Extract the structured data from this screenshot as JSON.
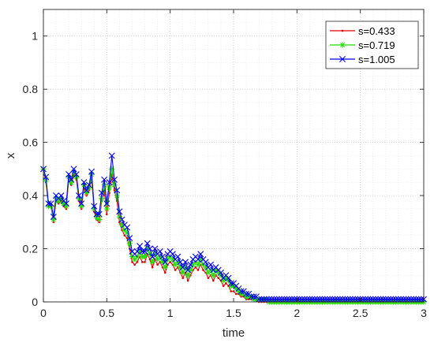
{
  "chart_data": {
    "type": "line",
    "title": "",
    "xlabel": "time",
    "ylabel": "x",
    "xlim": [
      0,
      3
    ],
    "ylim": [
      0,
      1.1
    ],
    "xticks": [
      "0",
      "0.5",
      "1",
      "1.5",
      "2",
      "2.5",
      "3"
    ],
    "yticks": [
      "0",
      "0.2",
      "0.4",
      "0.6",
      "0.8",
      "1"
    ],
    "grid": "dotted, major and minor",
    "legend_position": "top-right",
    "x": [
      0,
      0.02,
      0.04,
      0.06,
      0.08,
      0.1,
      0.12,
      0.14,
      0.16,
      0.18,
      0.2,
      0.22,
      0.24,
      0.26,
      0.28,
      0.3,
      0.32,
      0.34,
      0.36,
      0.38,
      0.4,
      0.42,
      0.44,
      0.46,
      0.48,
      0.5,
      0.52,
      0.54,
      0.56,
      0.58,
      0.6,
      0.62,
      0.64,
      0.66,
      0.68,
      0.7,
      0.72,
      0.74,
      0.76,
      0.78,
      0.8,
      0.82,
      0.84,
      0.86,
      0.88,
      0.9,
      0.92,
      0.94,
      0.96,
      0.98,
      1.0,
      1.02,
      1.04,
      1.06,
      1.08,
      1.1,
      1.12,
      1.14,
      1.16,
      1.18,
      1.2,
      1.22,
      1.24,
      1.26,
      1.28,
      1.3,
      1.32,
      1.34,
      1.36,
      1.38,
      1.4,
      1.42,
      1.44,
      1.46,
      1.48,
      1.5,
      1.52,
      1.54,
      1.56,
      1.58,
      1.6,
      1.62,
      1.64,
      1.66,
      1.68,
      1.7,
      1.72,
      1.74,
      1.76,
      1.78,
      1.8,
      1.82,
      1.84,
      1.86,
      1.88,
      1.9,
      1.92,
      1.94,
      1.96,
      1.98,
      2.0,
      2.02,
      2.04,
      2.06,
      2.08,
      2.1,
      2.12,
      2.14,
      2.16,
      2.18,
      2.2,
      2.22,
      2.24,
      2.26,
      2.28,
      2.3,
      2.32,
      2.34,
      2.36,
      2.38,
      2.4,
      2.42,
      2.44,
      2.46,
      2.48,
      2.5,
      2.52,
      2.54,
      2.56,
      2.58,
      2.6,
      2.62,
      2.64,
      2.66,
      2.68,
      2.7,
      2.72,
      2.74,
      2.76,
      2.78,
      2.8,
      2.82,
      2.84,
      2.86,
      2.88,
      2.9,
      2.92,
      2.94,
      2.96,
      2.98,
      3.0
    ],
    "series": [
      {
        "name": "s=0.433",
        "color": "#e00000",
        "marker": "dot",
        "values": [
          0.5,
          0.45,
          0.36,
          0.36,
          0.3,
          0.38,
          0.37,
          0.38,
          0.36,
          0.35,
          0.46,
          0.44,
          0.48,
          0.46,
          0.38,
          0.35,
          0.43,
          0.4,
          0.42,
          0.47,
          0.34,
          0.31,
          0.3,
          0.38,
          0.42,
          0.33,
          0.41,
          0.48,
          0.42,
          0.38,
          0.3,
          0.27,
          0.25,
          0.24,
          0.2,
          0.15,
          0.14,
          0.15,
          0.17,
          0.15,
          0.15,
          0.18,
          0.16,
          0.13,
          0.16,
          0.14,
          0.15,
          0.13,
          0.11,
          0.14,
          0.15,
          0.14,
          0.12,
          0.13,
          0.11,
          0.09,
          0.11,
          0.08,
          0.1,
          0.12,
          0.13,
          0.12,
          0.14,
          0.12,
          0.11,
          0.09,
          0.1,
          0.08,
          0.1,
          0.09,
          0.08,
          0.06,
          0.07,
          0.06,
          0.04,
          0.04,
          0.03,
          0.03,
          0.02,
          0.02,
          0.01,
          0.01,
          0.01,
          0.01,
          0.01,
          0.0,
          0.0,
          0.0,
          0.0,
          0.0,
          0.0,
          0.0,
          0.0,
          0.0,
          0.0,
          0.0,
          0.0,
          0.0,
          0.0,
          0.0,
          0.0,
          0.0,
          0.0,
          0.0,
          0.0,
          0.0,
          0.0,
          0.0,
          0.0,
          0.0,
          0.0,
          0.0,
          0.0,
          0.0,
          0.0,
          0.0,
          0.0,
          0.0,
          0.0,
          0.0,
          0.0,
          0.0,
          0.0,
          0.0,
          0.0,
          0.0,
          0.0,
          0.0,
          0.0,
          0.0,
          0.0,
          0.0,
          0.0,
          0.0,
          0.0,
          0.0,
          0.0,
          0.0,
          0.0,
          0.0,
          0.0,
          0.0,
          0.0,
          0.0,
          0.0,
          0.0,
          0.0,
          0.0,
          0.0,
          0.0,
          0.0
        ]
      },
      {
        "name": "s=0.719",
        "color": "#22dd00",
        "marker": "star",
        "values": [
          0.5,
          0.46,
          0.36,
          0.36,
          0.31,
          0.39,
          0.38,
          0.39,
          0.37,
          0.36,
          0.47,
          0.45,
          0.49,
          0.47,
          0.39,
          0.36,
          0.44,
          0.41,
          0.43,
          0.48,
          0.35,
          0.32,
          0.31,
          0.39,
          0.44,
          0.35,
          0.43,
          0.5,
          0.44,
          0.4,
          0.32,
          0.29,
          0.27,
          0.26,
          0.22,
          0.17,
          0.16,
          0.17,
          0.19,
          0.17,
          0.17,
          0.2,
          0.18,
          0.15,
          0.18,
          0.16,
          0.17,
          0.15,
          0.13,
          0.16,
          0.17,
          0.16,
          0.14,
          0.15,
          0.13,
          0.11,
          0.13,
          0.1,
          0.12,
          0.14,
          0.15,
          0.14,
          0.16,
          0.14,
          0.13,
          0.11,
          0.12,
          0.1,
          0.12,
          0.11,
          0.1,
          0.08,
          0.09,
          0.08,
          0.06,
          0.06,
          0.05,
          0.04,
          0.03,
          0.03,
          0.02,
          0.02,
          0.02,
          0.01,
          0.01,
          0.01,
          0.01,
          0.01,
          0.01,
          0.0,
          0.0,
          0.0,
          0.0,
          0.0,
          0.0,
          0.0,
          0.0,
          0.0,
          0.0,
          0.0,
          0.0,
          0.0,
          0.0,
          0.0,
          0.0,
          0.0,
          0.0,
          0.0,
          0.0,
          0.0,
          0.0,
          0.0,
          0.0,
          0.0,
          0.0,
          0.0,
          0.0,
          0.0,
          0.0,
          0.0,
          0.0,
          0.0,
          0.0,
          0.0,
          0.0,
          0.0,
          0.0,
          0.0,
          0.0,
          0.0,
          0.0,
          0.0,
          0.0,
          0.0,
          0.0,
          0.0,
          0.0,
          0.0,
          0.0,
          0.0,
          0.0,
          0.0,
          0.0,
          0.0,
          0.0,
          0.0,
          0.0,
          0.0,
          0.0,
          0.0,
          0.0
        ]
      },
      {
        "name": "s=1.005",
        "color": "#0000ee",
        "marker": "x",
        "values": [
          0.5,
          0.47,
          0.37,
          0.37,
          0.32,
          0.4,
          0.39,
          0.4,
          0.38,
          0.37,
          0.48,
          0.46,
          0.5,
          0.48,
          0.4,
          0.37,
          0.45,
          0.42,
          0.44,
          0.49,
          0.36,
          0.33,
          0.33,
          0.41,
          0.46,
          0.37,
          0.45,
          0.55,
          0.46,
          0.42,
          0.34,
          0.31,
          0.29,
          0.28,
          0.24,
          0.19,
          0.18,
          0.19,
          0.21,
          0.19,
          0.19,
          0.22,
          0.2,
          0.17,
          0.2,
          0.18,
          0.19,
          0.17,
          0.15,
          0.18,
          0.19,
          0.18,
          0.16,
          0.17,
          0.15,
          0.13,
          0.15,
          0.12,
          0.14,
          0.16,
          0.17,
          0.16,
          0.18,
          0.16,
          0.15,
          0.13,
          0.14,
          0.12,
          0.13,
          0.12,
          0.11,
          0.09,
          0.1,
          0.09,
          0.07,
          0.07,
          0.06,
          0.05,
          0.04,
          0.04,
          0.03,
          0.03,
          0.02,
          0.02,
          0.02,
          0.01,
          0.01,
          0.01,
          0.01,
          0.01,
          0.01,
          0.01,
          0.01,
          0.01,
          0.01,
          0.01,
          0.01,
          0.01,
          0.01,
          0.01,
          0.01,
          0.01,
          0.01,
          0.01,
          0.01,
          0.01,
          0.01,
          0.01,
          0.01,
          0.01,
          0.01,
          0.01,
          0.01,
          0.01,
          0.01,
          0.01,
          0.01,
          0.01,
          0.01,
          0.01,
          0.01,
          0.01,
          0.01,
          0.01,
          0.01,
          0.01,
          0.01,
          0.01,
          0.01,
          0.01,
          0.01,
          0.01,
          0.01,
          0.01,
          0.01,
          0.01,
          0.01,
          0.01,
          0.01,
          0.01,
          0.01,
          0.01,
          0.01,
          0.01,
          0.01,
          0.01,
          0.01,
          0.01,
          0.01,
          0.01,
          0.01
        ]
      }
    ]
  }
}
